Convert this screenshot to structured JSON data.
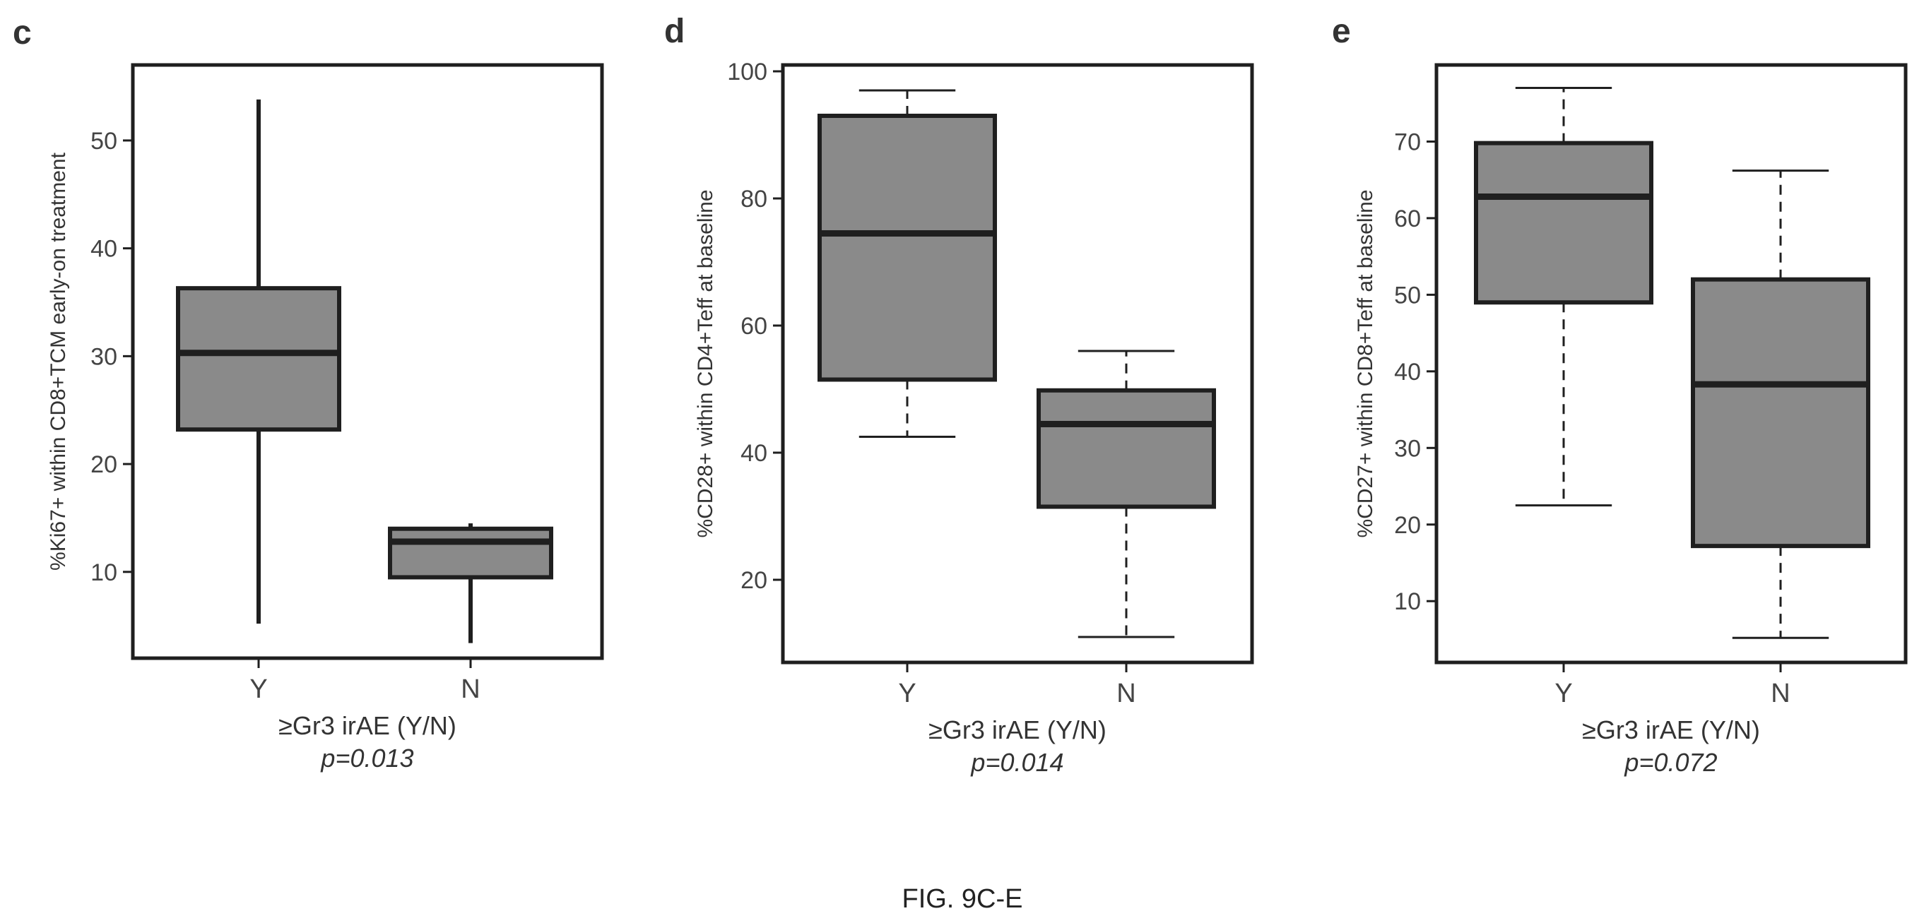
{
  "figure": {
    "caption": "FIG. 9C-E"
  },
  "colors": {
    "box_fill": "#8a8a8a",
    "line": "#1f1f1f",
    "frame": "#1f1f1f",
    "text": "#333333"
  },
  "chart_data": [
    {
      "type": "boxplot",
      "panel": "c",
      "xlabel": "≥Gr3 irAE (Y/N)",
      "ylabel": "%Ki67+ within CD8+TCM early-on treatment",
      "pvalue": "p=0.013",
      "categories": [
        "Y",
        "N"
      ],
      "yticks": [
        10,
        20,
        30,
        40,
        50
      ],
      "ylim": [
        2,
        57
      ],
      "whisker_style": "solid",
      "boxes": [
        {
          "name": "Y",
          "min": 5.2,
          "q1": 23.2,
          "median": 30.3,
          "q3": 36.3,
          "max": 53.8
        },
        {
          "name": "N",
          "min": 3.4,
          "q1": 9.5,
          "median": 12.8,
          "q3": 14.0,
          "max": 14.5
        }
      ]
    },
    {
      "type": "boxplot",
      "panel": "d",
      "xlabel": "≥Gr3 irAE (Y/N)",
      "ylabel": "%CD28+ within CD4+Teff at baseline",
      "pvalue": "p=0.014",
      "categories": [
        "Y",
        "N"
      ],
      "yticks": [
        20,
        40,
        60,
        80,
        100
      ],
      "ylim": [
        7,
        101
      ],
      "whisker_style": "dashed",
      "boxes": [
        {
          "name": "Y",
          "min": 42.5,
          "q1": 51.5,
          "median": 74.5,
          "q3": 93.0,
          "max": 97.0
        },
        {
          "name": "N",
          "min": 11.0,
          "q1": 31.5,
          "median": 44.5,
          "q3": 49.8,
          "max": 56.0
        }
      ]
    },
    {
      "type": "boxplot",
      "panel": "e",
      "xlabel": "≥Gr3 irAE (Y/N)",
      "ylabel": "%CD27+ within CD8+Teff at baseline",
      "pvalue": "p=0.072",
      "categories": [
        "Y",
        "N"
      ],
      "yticks": [
        10,
        20,
        30,
        40,
        50,
        60,
        70
      ],
      "ylim": [
        2,
        80
      ],
      "whisker_style": "dashed",
      "boxes": [
        {
          "name": "Y",
          "min": 22.5,
          "q1": 49.0,
          "median": 62.8,
          "q3": 69.8,
          "max": 77.0
        },
        {
          "name": "N",
          "min": 5.2,
          "q1": 17.2,
          "median": 38.3,
          "q3": 52.0,
          "max": 66.2
        }
      ]
    }
  ]
}
